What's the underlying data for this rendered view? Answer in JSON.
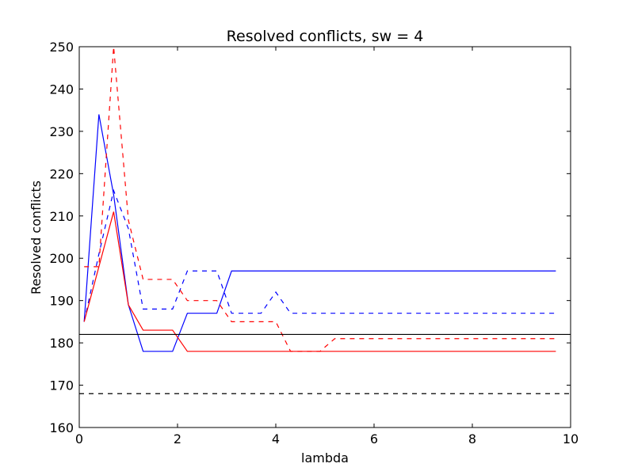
{
  "chart_data": {
    "type": "line",
    "title": "Resolved conflicts, sw = 4",
    "xlabel": "lambda",
    "ylabel": "Resolved conflicts",
    "xlim": [
      0,
      10
    ],
    "ylim": [
      160,
      250
    ],
    "xticks": [
      0,
      2,
      4,
      6,
      8,
      10
    ],
    "yticks": [
      160,
      170,
      180,
      190,
      200,
      210,
      220,
      230,
      240,
      250
    ],
    "grid": false,
    "series": [
      {
        "color": "#0000ff",
        "style": "solid",
        "x": [
          0.1,
          0.4,
          0.7,
          1.0,
          1.3,
          1.6,
          1.9,
          2.2,
          2.5,
          2.8,
          3.1,
          9.7
        ],
        "y": [
          185,
          234,
          215,
          189,
          178,
          178,
          178,
          187,
          187,
          187,
          197,
          197
        ]
      },
      {
        "color": "#0000ff",
        "style": "dashed",
        "x": [
          0.1,
          0.4,
          0.7,
          1.0,
          1.3,
          1.6,
          1.9,
          2.2,
          2.5,
          2.8,
          3.1,
          3.4,
          3.7,
          4.0,
          4.3,
          9.7
        ],
        "y": [
          185,
          201,
          216,
          207,
          188,
          188,
          188,
          197,
          197,
          197,
          187,
          187,
          187,
          192,
          187,
          187
        ]
      },
      {
        "color": "#ff0000",
        "style": "solid",
        "x": [
          0.1,
          0.4,
          0.7,
          1.0,
          1.3,
          1.6,
          1.9,
          2.2,
          9.7
        ],
        "y": [
          185,
          198,
          211,
          189,
          183,
          183,
          183,
          178,
          178
        ]
      },
      {
        "color": "#ff0000",
        "style": "dashed",
        "x": [
          0.1,
          0.4,
          0.7,
          1.0,
          1.3,
          1.6,
          1.9,
          2.2,
          2.5,
          2.8,
          3.1,
          3.4,
          3.7,
          4.0,
          4.3,
          4.6,
          4.9,
          5.2,
          9.7
        ],
        "y": [
          198,
          198,
          250,
          209,
          195,
          195,
          195,
          190,
          190,
          190,
          185,
          185,
          185,
          185,
          178,
          178,
          178,
          181,
          181
        ]
      }
    ],
    "hlines": [
      {
        "y": 182,
        "color": "#000000",
        "style": "solid"
      },
      {
        "y": 168,
        "color": "#000000",
        "style": "dashed"
      }
    ]
  }
}
